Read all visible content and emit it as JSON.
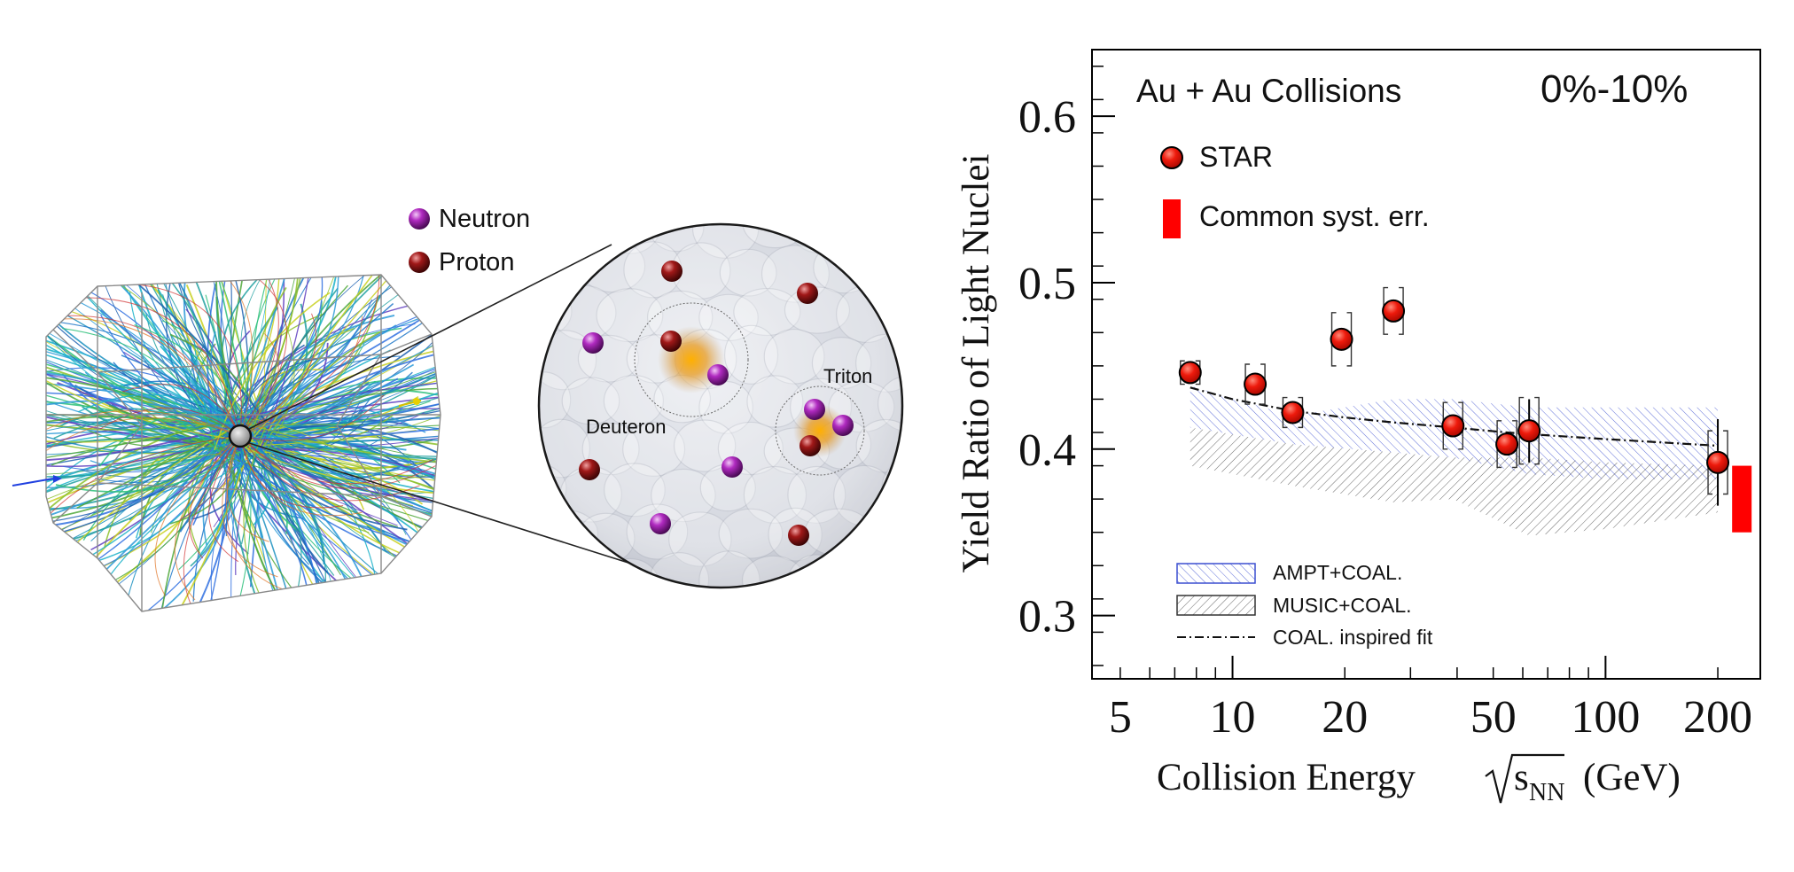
{
  "illustration": {
    "legend": [
      {
        "label": "Neutron",
        "color": "#a020b0"
      },
      {
        "label": "Proton",
        "color": "#8b1010"
      }
    ],
    "labels": {
      "deuteron": "Deuteron",
      "triton": "Triton"
    }
  },
  "chart_data": {
    "type": "scatter",
    "title_left": "Au + Au Collisions",
    "title_right": "0%-10%",
    "xlabel": "Collision Energy",
    "xlabel_sqrt": "s",
    "xlabel_sub": "NN",
    "xlabel_unit": "(GeV)",
    "ylabel": "Yield Ratio of Light Nuclei",
    "xscale": "log",
    "xlim": [
      4.2,
      260
    ],
    "ylim": [
      0.262,
      0.64
    ],
    "xticks": [
      {
        "value": 5,
        "label": "5"
      },
      {
        "value": 10,
        "label": "10"
      },
      {
        "value": 20,
        "label": "20"
      },
      {
        "value": 50,
        "label": "50"
      },
      {
        "value": 100,
        "label": "100"
      },
      {
        "value": 200,
        "label": "200"
      }
    ],
    "yticks": [
      {
        "value": 0.3,
        "label": "0.3"
      },
      {
        "value": 0.4,
        "label": "0.4"
      },
      {
        "value": 0.5,
        "label": "0.5"
      },
      {
        "value": 0.6,
        "label": "0.6"
      }
    ],
    "series": [
      {
        "name": "STAR",
        "color": "#e8140a",
        "x": [
          7.7,
          11.5,
          14.5,
          19.6,
          27,
          39,
          54.4,
          62.4,
          200
        ],
        "y": [
          0.446,
          0.439,
          0.422,
          0.466,
          0.483,
          0.414,
          0.403,
          0.411,
          0.392
        ],
        "stat_err": [
          0.005,
          0.004,
          0.003,
          0.004,
          0.005,
          0.004,
          0.004,
          0.019,
          0.026
        ],
        "syst_err": [
          0.007,
          0.012,
          0.009,
          0.016,
          0.014,
          0.014,
          0.014,
          0.02,
          0.019
        ]
      }
    ],
    "common_syst": {
      "label": "Common syst. err.",
      "x": 232,
      "y_low": 0.35,
      "y_high": 0.39,
      "color": "#ff0000"
    },
    "bands": [
      {
        "name": "AMPT+COAL.",
        "color": "#3b4fd0",
        "x": [
          7.7,
          14.5,
          27,
          39,
          62.4,
          100,
          200
        ],
        "upper": [
          0.438,
          0.42,
          0.43,
          0.43,
          0.425,
          0.425,
          0.425
        ],
        "lower": [
          0.413,
          0.403,
          0.398,
          0.395,
          0.385,
          0.382,
          0.382
        ]
      },
      {
        "name": "MUSIC+COAL.",
        "color": "#3a3a3a",
        "x": [
          7.7,
          14.5,
          27,
          39,
          62.4,
          100,
          200
        ],
        "upper": [
          0.413,
          0.403,
          0.398,
          0.395,
          0.395,
          0.392,
          0.39
        ],
        "lower": [
          0.39,
          0.378,
          0.368,
          0.37,
          0.348,
          0.352,
          0.362
        ]
      }
    ],
    "fit": {
      "name": "COAL. inspired fit",
      "color": "#111111",
      "x": [
        7.7,
        10,
        14.5,
        20,
        27,
        39,
        54.4,
        62.4,
        100,
        200
      ],
      "y": [
        0.437,
        0.43,
        0.423,
        0.419,
        0.416,
        0.413,
        0.41,
        0.409,
        0.406,
        0.402
      ]
    }
  }
}
